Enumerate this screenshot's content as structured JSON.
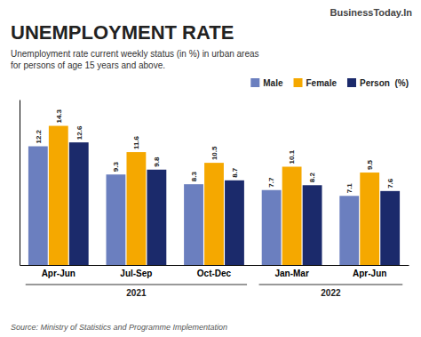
{
  "chart_data": {
    "type": "bar",
    "title": "UNEMPLOYMENT RATE",
    "subtitle": "Unemployment rate current weekly status (in %) in urban areas\nfor persons of age 15 years and above.",
    "source": "Source: Ministry of Statistics and Programme Implementation",
    "branding": "BusinessToday.In",
    "categories": [
      "Apr-Jun",
      "Jul-Sep",
      "Oct-Dec",
      "Jan-Mar",
      "Apr-Jun"
    ],
    "series": [
      {
        "name": "Male",
        "color": "#6B7FBF",
        "values": [
          12.2,
          9.3,
          8.3,
          7.7,
          7.1
        ]
      },
      {
        "name": "Female",
        "color": "#F5A800",
        "values": [
          14.3,
          11.6,
          10.5,
          10.1,
          9.5
        ]
      },
      {
        "name": "Person  (%)",
        "color": "#1B2A6B",
        "values": [
          12.6,
          9.8,
          8.7,
          8.2,
          7.6
        ]
      }
    ],
    "annotations": [
      {
        "text": "2021",
        "span": [
          0,
          2
        ]
      },
      {
        "text": "2022",
        "span": [
          3,
          4
        ]
      }
    ],
    "ylim": [
      0,
      17
    ],
    "tick_labels": "x",
    "data_labels": true,
    "legend": "upper right",
    "grid": false
  }
}
